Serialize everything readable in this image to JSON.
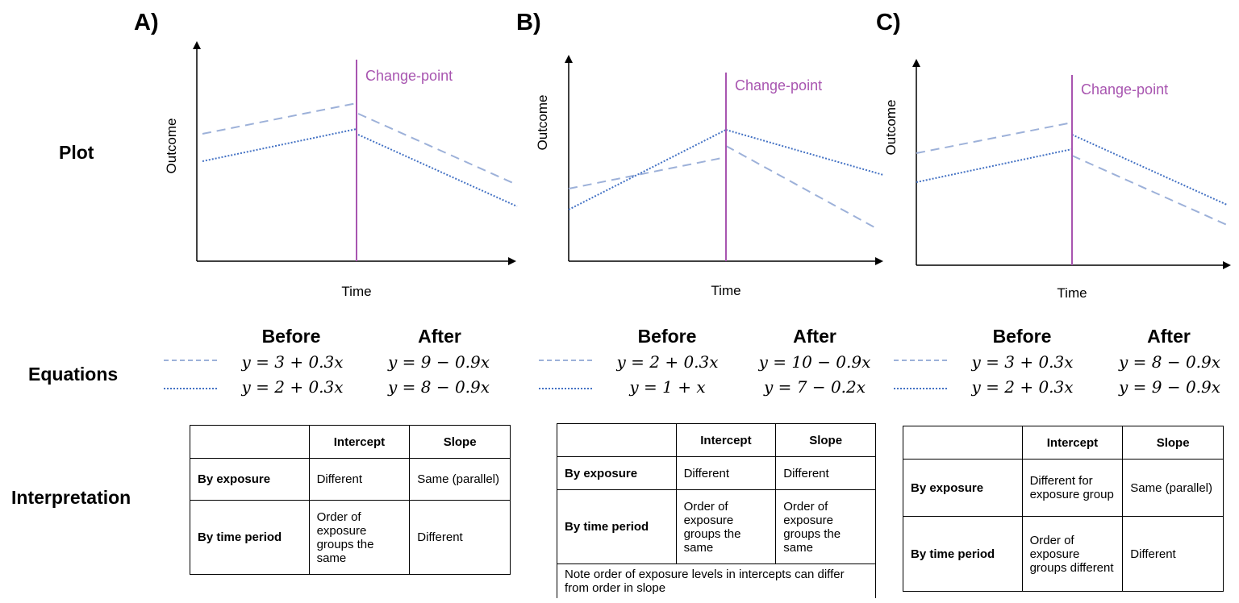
{
  "panels": [
    {
      "letter": "A)",
      "ylabel": "Outcome",
      "xlabel": "Time",
      "changepoint_label": "Change-point",
      "eq_before_header": "Before",
      "eq_after_header": "After",
      "eq_dashed_before": "y = 3 + 0.3x",
      "eq_dashed_after": "y = 9 − 0.9x",
      "eq_dotted_before": "y = 2 + 0.3x",
      "eq_dotted_after": "y = 8 − 0.9x",
      "table": {
        "header": [
          "",
          "Intercept",
          "Slope"
        ],
        "rows": [
          [
            "By exposure",
            "Different",
            "Same (parallel)"
          ],
          [
            "By time period",
            "Order of exposure groups the same",
            "Different"
          ]
        ],
        "note": ""
      }
    },
    {
      "letter": "B)",
      "ylabel": "Outcome",
      "xlabel": "Time",
      "changepoint_label": "Change-point",
      "eq_before_header": "Before",
      "eq_after_header": "After",
      "eq_dashed_before": "y = 2 + 0.3x",
      "eq_dashed_after": "y = 10 − 0.9x",
      "eq_dotted_before": "y = 1 + x",
      "eq_dotted_after": "y = 7 − 0.2x",
      "table": {
        "header": [
          "",
          "Intercept",
          "Slope"
        ],
        "rows": [
          [
            "By exposure",
            "Different",
            "Different"
          ],
          [
            "By time period",
            "Order of exposure groups the same",
            "Order of exposure groups the same"
          ]
        ],
        "note": "Note order of exposure levels in intercepts can differ from order in slope"
      }
    },
    {
      "letter": "C)",
      "ylabel": "Outcome",
      "xlabel": "Time",
      "changepoint_label": "Change-point",
      "eq_before_header": "Before",
      "eq_after_header": "After",
      "eq_dashed_before": "y = 3 + 0.3x",
      "eq_dashed_after": "y = 8 − 0.9x",
      "eq_dotted_before": "y = 2 + 0.3x",
      "eq_dotted_after": "y = 9 − 0.9x",
      "table": {
        "header": [
          "",
          "Intercept",
          "Slope"
        ],
        "rows": [
          [
            "By exposure",
            "Different for exposure group",
            "Same (parallel)"
          ],
          [
            "By time period",
            "Order of exposure groups different",
            "Different"
          ]
        ],
        "note": ""
      }
    }
  ],
  "row_labels": {
    "plot": "Plot",
    "equations": "Equations",
    "interpretation": "Interpretation"
  },
  "colors": {
    "changepoint": "#a855b0",
    "dashed_series": "#9db1d9",
    "dotted_series": "#4472c4"
  }
}
